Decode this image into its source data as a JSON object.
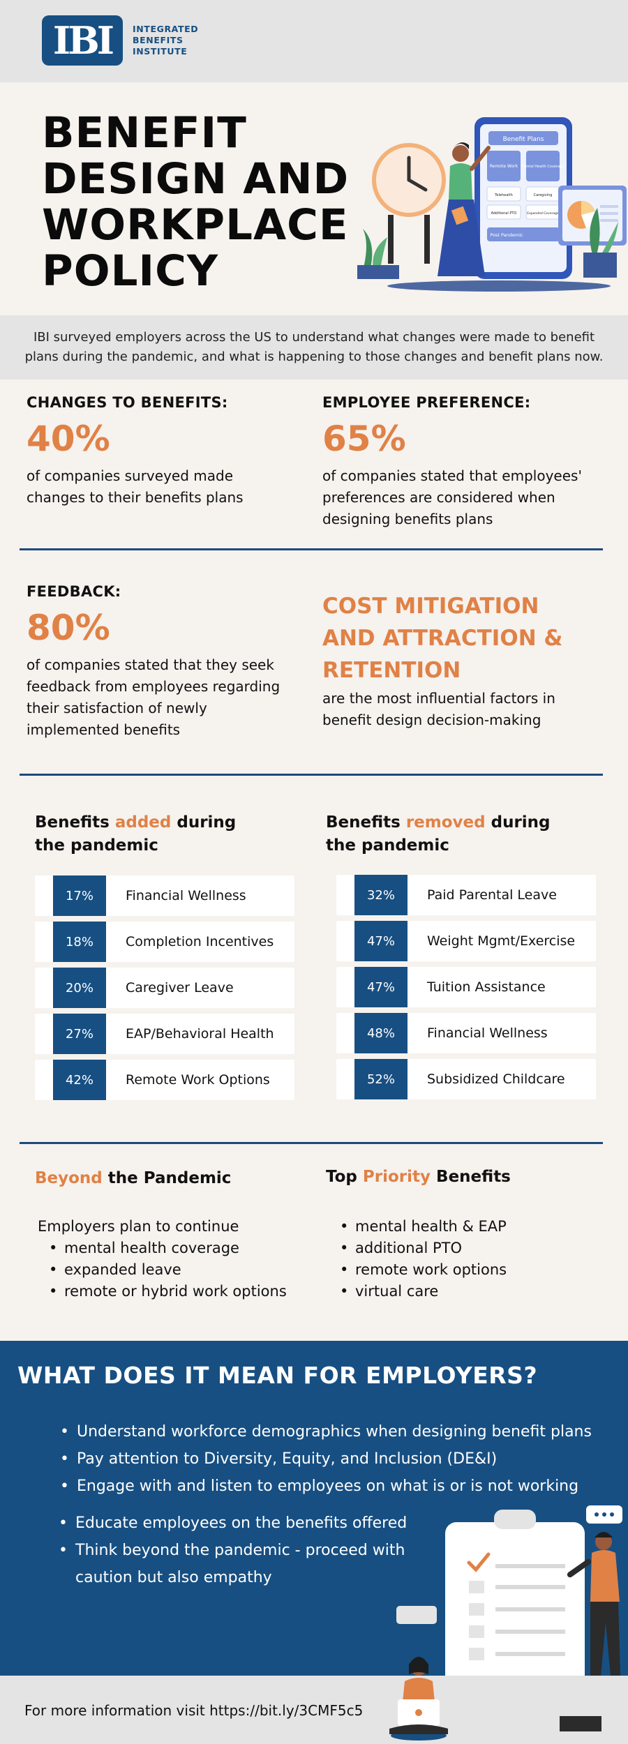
{
  "logo": {
    "mark": "IBI",
    "lines": [
      "INTEGRATED",
      "BENEFITS",
      "INSTITUTE"
    ]
  },
  "hero": {
    "title_lines": [
      "BENEFIT",
      "DESIGN AND",
      "WORKPLACE",
      "POLICY"
    ],
    "art": {
      "panel_title": "Benefit Plans",
      "cells": [
        "Remote Work",
        "Mental Health Coverage",
        "Telehealth",
        "Caregiving",
        "Additional PTO",
        "Expanded Coverage"
      ],
      "footer_label": "Post Pandemic"
    }
  },
  "intro": {
    "lines": [
      "IBI surveyed employers across the US to understand what changes were made to benefit",
      "plans during the pandemic, and what is happening to those changes and benefit plans now."
    ]
  },
  "stats": {
    "changes": {
      "label": "CHANGES TO BENEFITS:",
      "value": "40%",
      "desc_lines": [
        "of companies surveyed made",
        "changes to their benefits plans"
      ]
    },
    "preference": {
      "label": "EMPLOYEE PREFERENCE:",
      "value": "65%",
      "desc_lines": [
        "of companies stated that employees'",
        "preferences are considered when",
        "designing benefits plans"
      ]
    },
    "feedback": {
      "label": "FEEDBACK:",
      "value": "80%",
      "desc_lines": [
        "of companies stated that they seek",
        "feedback from employees regarding",
        "their satisfaction of newly",
        "implemented benefits"
      ]
    },
    "cost": {
      "title_lines": [
        "COST MITIGATION",
        "AND ATTRACTION &",
        "RETENTION"
      ],
      "desc_lines": [
        "are the most influential factors in",
        "benefit design decision-making"
      ]
    }
  },
  "benefits_added": {
    "heading_pre": "Benefits ",
    "heading_accent": "added",
    "heading_post": " during",
    "heading_line2": "the pandemic",
    "rows": [
      {
        "pct": "17%",
        "name": "Financial Wellness"
      },
      {
        "pct": "18%",
        "name": "Completion Incentives"
      },
      {
        "pct": "20%",
        "name": "Caregiver Leave"
      },
      {
        "pct": "27%",
        "name": "EAP/Behavioral Health"
      },
      {
        "pct": "42%",
        "name": "Remote Work Options"
      }
    ]
  },
  "benefits_removed": {
    "heading_pre": "Benefits ",
    "heading_accent": "removed",
    "heading_post": " during",
    "heading_line2": "the pandemic",
    "rows": [
      {
        "pct": "32%",
        "name": "Paid Parental Leave"
      },
      {
        "pct": "47%",
        "name": "Weight Mgmt/Exercise"
      },
      {
        "pct": "47%",
        "name": "Tuition Assistance"
      },
      {
        "pct": "48%",
        "name": "Financial Wellness"
      },
      {
        "pct": "52%",
        "name": "Subsidized Childcare"
      }
    ]
  },
  "beyond": {
    "heading_accent": "Beyond",
    "heading_post": " the Pandemic",
    "intro": "Employers plan to continue",
    "items": [
      "mental health coverage",
      "expanded leave",
      "remote or hybrid work options"
    ]
  },
  "priority": {
    "heading_pre": "Top ",
    "heading_accent": "Priority",
    "heading_post": " Benefits",
    "items": [
      "mental health & EAP",
      "additional PTO",
      "remote work options",
      "virtual care"
    ]
  },
  "employers": {
    "title": "WHAT DOES IT MEAN FOR EMPLOYERS?",
    "items_a": [
      "Understand workforce demographics when designing benefit plans",
      "Pay attention to Diversity, Equity, and Inclusion (DE&I)",
      "Engage with and listen to employees on what is or is not working"
    ],
    "items_b": [
      "Educate employees on the benefits offered",
      "Think beyond the pandemic - proceed with",
      "caution but also empathy"
    ]
  },
  "footer": {
    "text": "For more information visit https://bit.ly/3CMF5c5"
  },
  "colors": {
    "navy": "#174f82",
    "orange": "#e08146",
    "background": "#f6f2ee",
    "gray": "#e4e4e4"
  }
}
